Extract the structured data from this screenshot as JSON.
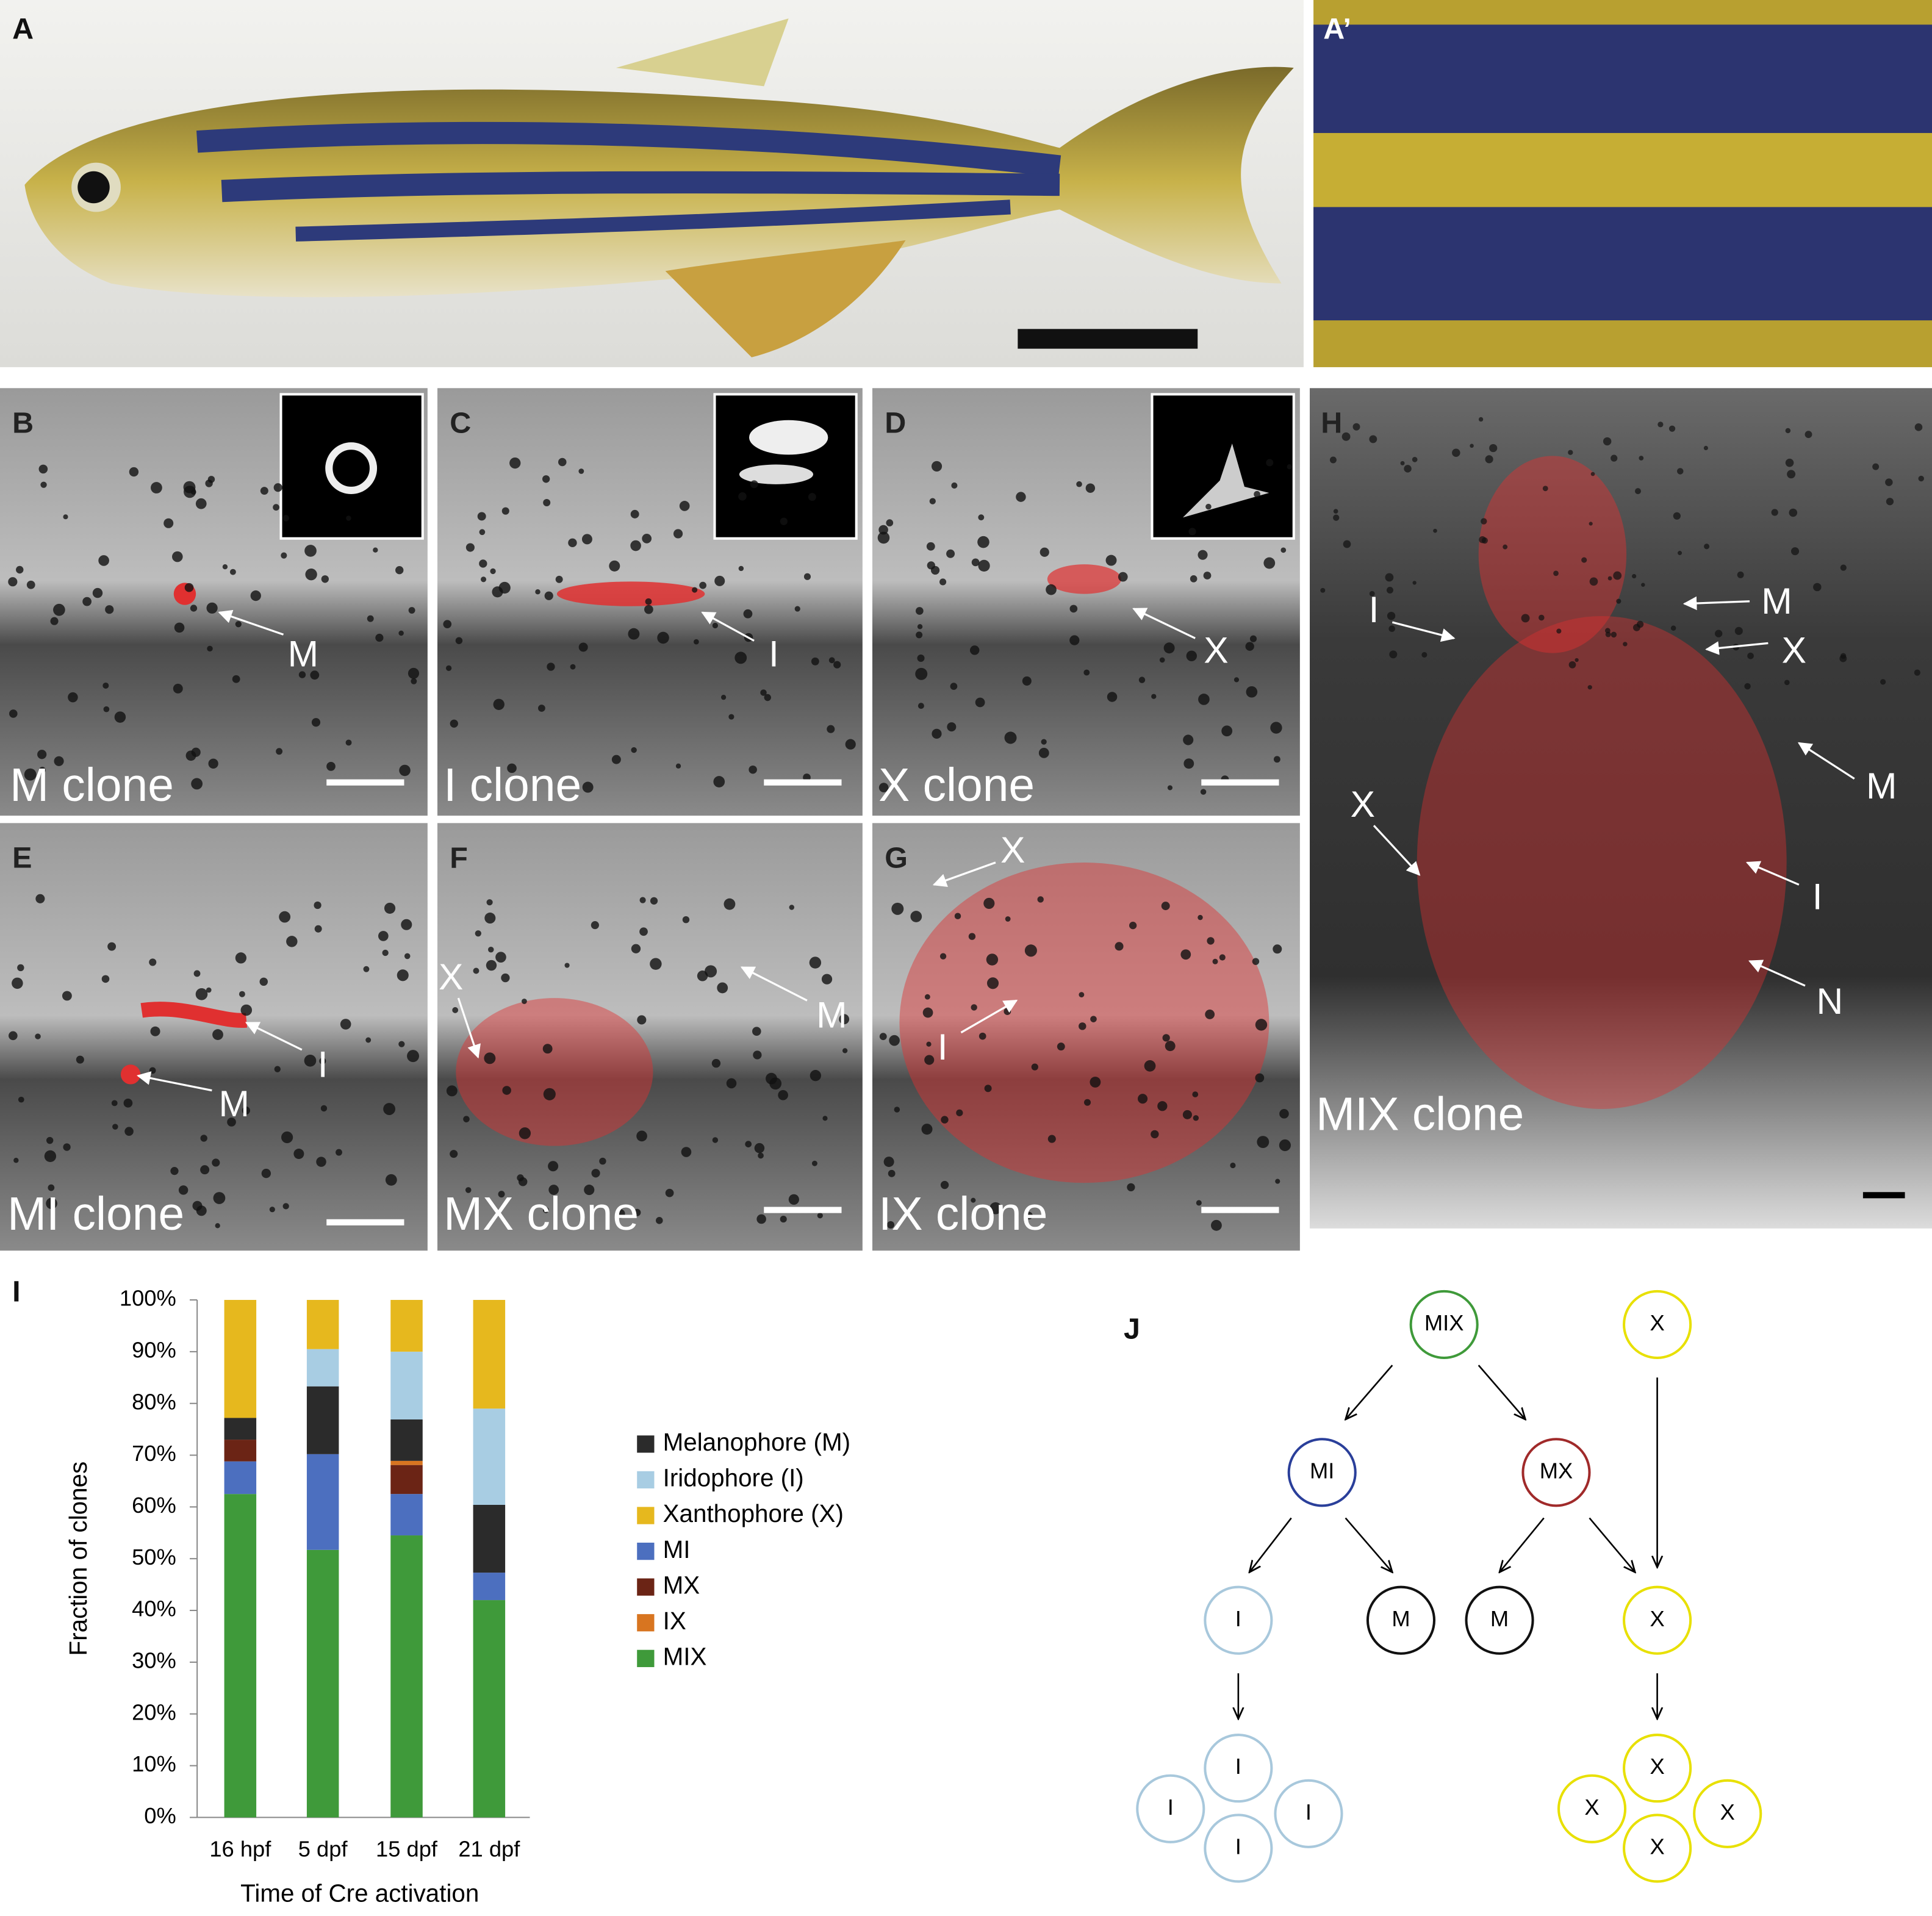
{
  "panel_labels": [
    "A",
    "A’",
    "B",
    "C",
    "D",
    "E",
    "F",
    "G",
    "H",
    "I",
    "J"
  ],
  "clone_labels": [
    "M clone",
    "I clone",
    "X clone",
    "MI clone",
    "MX clone",
    "IX clone",
    "MIX clone"
  ],
  "annotations": {
    "B": [
      "M"
    ],
    "C": [
      "I"
    ],
    "D": [
      "X"
    ],
    "E": [
      "I",
      "M"
    ],
    "F": [
      "X",
      "M"
    ],
    "G": [
      "X",
      "I"
    ],
    "H": [
      "M",
      "I",
      "X",
      "M",
      "X",
      "I",
      "N"
    ]
  },
  "chart_data": {
    "type": "bar",
    "stacked": true,
    "y_label": "Fraction of clones",
    "x_label": "Time of Cre activation",
    "categories": [
      "16 hpf",
      "5 dpf",
      "15 dpf",
      "21 dpf"
    ],
    "series": [
      {
        "name": "Melanophore (M)",
        "color": "#2b2b2b",
        "values": [
          4.2,
          13.1,
          8,
          13.1
        ]
      },
      {
        "name": "Iridophore (I)",
        "color": "#a8cde3",
        "values": [
          0,
          7.2,
          13.1,
          18.6
        ]
      },
      {
        "name": "Xanthophore (X)",
        "color": "#e6b81e",
        "values": [
          22.8,
          9.5,
          10,
          21
        ]
      },
      {
        "name": "MI",
        "color": "#4c6fbf",
        "values": [
          6.3,
          18.5,
          8,
          5.3
        ]
      },
      {
        "name": "MX",
        "color": "#6b2415",
        "values": [
          4.2,
          0,
          5.6,
          0
        ]
      },
      {
        "name": "IX",
        "color": "#d87520",
        "values": [
          0,
          0,
          0.8,
          0
        ]
      },
      {
        "name": "MIX",
        "color": "#3f9a3a",
        "values": [
          62.5,
          51.7,
          54.5,
          42
        ]
      }
    ],
    "ylim": [
      0,
      100
    ],
    "yticks": [
      {
        "value": 0,
        "label": "0%"
      },
      {
        "value": 10,
        "label": "10%"
      },
      {
        "value": 20,
        "label": "20%"
      },
      {
        "value": 30,
        "label": "30%"
      },
      {
        "value": 40,
        "label": "40%"
      },
      {
        "value": 50,
        "label": "50%"
      },
      {
        "value": 60,
        "label": "60%"
      },
      {
        "value": 70,
        "label": "70%"
      },
      {
        "value": 80,
        "label": "80%"
      },
      {
        "value": 90,
        "label": "90%"
      },
      {
        "value": 100,
        "label": "100%"
      }
    ]
  },
  "lineage": {
    "nodes": [
      {
        "label": "MIX",
        "color": "#3f9a3a"
      },
      {
        "label": "X",
        "color": "#e8e000"
      },
      {
        "label": "MI",
        "color": "#2a3f9a"
      },
      {
        "label": "MX",
        "color": "#a02a2a"
      },
      {
        "label": "I",
        "color": "#a8c8dc"
      },
      {
        "label": "M",
        "color": "#111111"
      },
      {
        "label": "M",
        "color": "#111111"
      },
      {
        "label": "X",
        "color": "#e8e000"
      },
      {
        "label": "I",
        "color": "#a8c8dc"
      },
      {
        "label": "I",
        "color": "#a8c8dc"
      },
      {
        "label": "I",
        "color": "#a8c8dc"
      },
      {
        "label": "I",
        "color": "#a8c8dc"
      },
      {
        "label": "X",
        "color": "#e8e000"
      },
      {
        "label": "X",
        "color": "#e8e000"
      },
      {
        "label": "X",
        "color": "#e8e000"
      },
      {
        "label": "X",
        "color": "#e8e000"
      }
    ]
  }
}
